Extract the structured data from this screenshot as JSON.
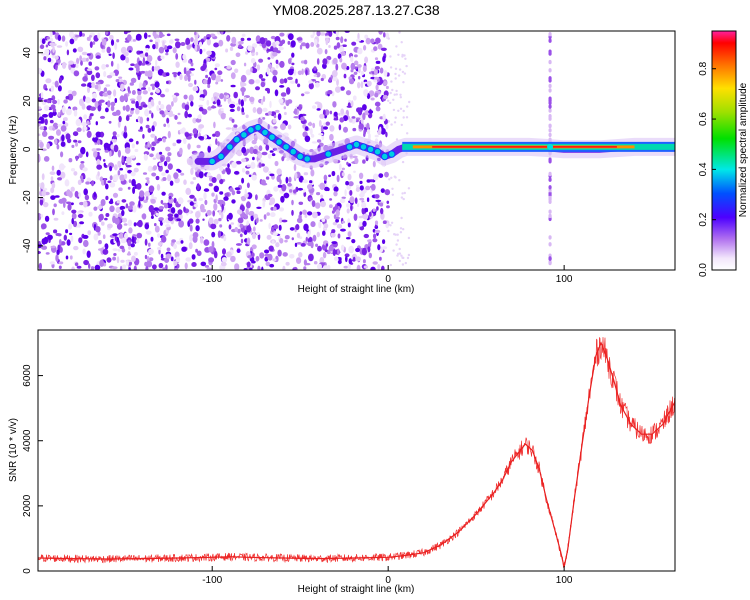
{
  "title": "YM08.2025.287.13.27.C38",
  "chart_data": [
    {
      "type": "heatmap",
      "name": "spectrogram",
      "xlabel": "Height of straight line (km)",
      "ylabel": "Frequency (Hz)",
      "xlim": [
        -199,
        163
      ],
      "ylim": [
        -50,
        49
      ],
      "xticks": [
        -100,
        0,
        100
      ],
      "xtick_labels": [
        "-100",
        "0",
        "100"
      ],
      "yticks": [
        -40,
        -20,
        0,
        20,
        40
      ],
      "ytick_labels": [
        "-40",
        "-20",
        "0",
        "20",
        "40"
      ],
      "noise_region_x": [
        -199,
        0
      ],
      "ridge": {
        "x": [
          -108,
          -100,
          -95,
          -90,
          -86,
          -82,
          -78,
          -74,
          -70,
          -66,
          -62,
          -58,
          -54,
          -50,
          -46,
          -42,
          -38,
          -34,
          -30,
          -26,
          -22,
          -18,
          -14,
          -10,
          -6,
          -2,
          2,
          6,
          10,
          20,
          40,
          60,
          80,
          92,
          100,
          120,
          140,
          163
        ],
        "y": [
          -5,
          -5,
          -3,
          1,
          4,
          6,
          8,
          9,
          7,
          5,
          3,
          1,
          -1,
          -3,
          -4,
          -4,
          -3,
          -2,
          -1,
          0,
          1,
          2,
          1,
          0,
          -1,
          -3,
          -2,
          0,
          1,
          1,
          1,
          1,
          1,
          0.5,
          0,
          0,
          1,
          1
        ]
      },
      "impulse_x": 92,
      "colorbar": {
        "label": "Normalized spectral amplitude",
        "range": [
          0,
          0.95
        ],
        "ticks": [
          0.0,
          0.2,
          0.4,
          0.6,
          0.8
        ],
        "tick_labels": [
          "0.0",
          "0.2",
          "0.4",
          "0.6",
          "0.8"
        ]
      }
    },
    {
      "type": "line",
      "name": "snr",
      "xlabel": "Height of straight line (km)",
      "ylabel": "SNR (10 * v/v)",
      "xlim": [
        -199,
        163
      ],
      "ylim": [
        0,
        7400
      ],
      "xticks": [
        -100,
        0,
        100
      ],
      "xtick_labels": [
        "-100",
        "0",
        "100"
      ],
      "yticks": [
        0,
        2000,
        4000,
        6000
      ],
      "ytick_labels": [
        "0",
        "2000",
        "4000",
        "6000"
      ],
      "color": "#f03030",
      "series": [
        {
          "name": "SNR",
          "x": [
            -199,
            -180,
            -160,
            -140,
            -120,
            -100,
            -90,
            -80,
            -60,
            -40,
            -20,
            0,
            10,
            20,
            30,
            40,
            50,
            60,
            65,
            70,
            75,
            78,
            82,
            86,
            90,
            94,
            98,
            100,
            102,
            106,
            110,
            114,
            118,
            121,
            124,
            128,
            132,
            138,
            144,
            150,
            156,
            163
          ],
          "y": [
            400,
            380,
            370,
            380,
            400,
            420,
            440,
            420,
            400,
            380,
            400,
            420,
            480,
            560,
            800,
            1200,
            1750,
            2400,
            2800,
            3350,
            3700,
            3900,
            3700,
            3100,
            2200,
            1400,
            600,
            120,
            650,
            2300,
            3800,
            5300,
            6600,
            7000,
            6600,
            5900,
            5100,
            4500,
            4200,
            4200,
            4500,
            5200
          ]
        }
      ]
    }
  ]
}
